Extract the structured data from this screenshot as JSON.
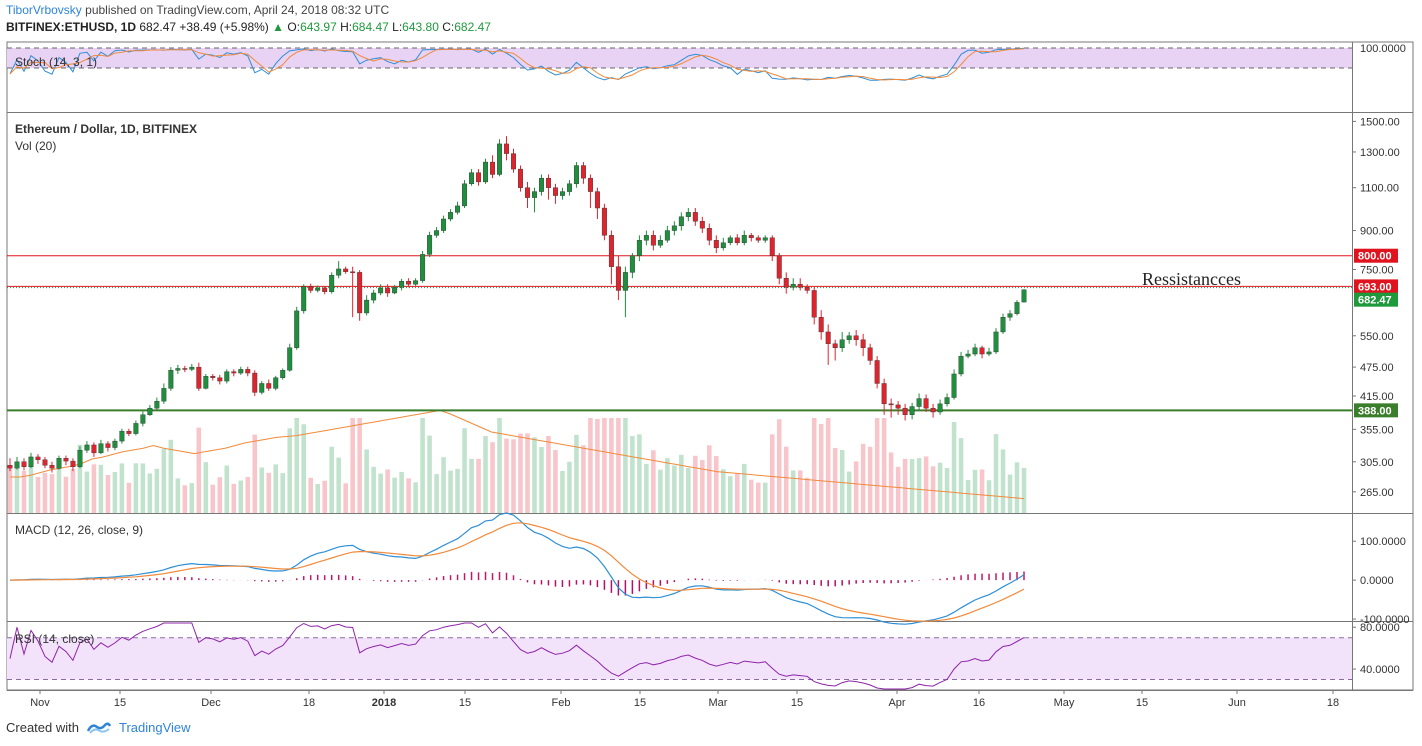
{
  "header": {
    "author": "TiborVrbovsky",
    "published_text": "published on TradingView.com, April 24, 2018 08:32 UTC",
    "symbol": "BITFINEX:ETHUSD, 1D",
    "last": "682.47",
    "change": "+38.49 (+5.98%)",
    "open_label": "O:",
    "open": "643.97",
    "high_label": "H:",
    "high": "684.47",
    "low_label": "L:",
    "low": "643.80",
    "close_label": "C:",
    "close": "682.47"
  },
  "footer": {
    "created_with": "Created with",
    "brand": "TradingView"
  },
  "chart_data": {
    "type": "candlestick",
    "title": "Ethereum / Dollar, 1D, BITFINEX",
    "volume_label": "Vol (20)",
    "annotation": "Ressistancces",
    "price_scale": "log",
    "ylim": [
      240,
      1560
    ],
    "price_ticks": [
      "1500.00",
      "1300.00",
      "1100.00",
      "900.00",
      "750.00",
      "550.00",
      "475.00",
      "415.00",
      "355.00",
      "305.00",
      "265.00"
    ],
    "price_tick_values": [
      1500,
      1300,
      1100,
      900,
      750,
      550,
      475,
      415,
      355,
      305,
      265
    ],
    "levels": [
      {
        "label": "800.00",
        "value": 800,
        "color": "#e0141e"
      },
      {
        "label": "693.00",
        "value": 693,
        "color": "#e0141e"
      },
      {
        "label": "388.00",
        "value": 388,
        "color": "#3a7d2a"
      }
    ],
    "last_price_label": "682.47",
    "last_price_value": 682.47,
    "x_ticks": [
      "Nov",
      "15",
      "Dec",
      "18",
      "2018",
      "15",
      "Feb",
      "15",
      "Mar",
      "15",
      "Apr",
      "16",
      "May",
      "15",
      "Jun",
      "18"
    ],
    "stoch": {
      "label": "Stoch (14, 3, 1)",
      "ticks": [
        "100.0000"
      ],
      "ylim": [
        0,
        100
      ],
      "band": [
        20,
        80
      ]
    },
    "macd": {
      "label": "MACD (12, 26, close, 9)",
      "ticks": [
        "100.0000",
        "0.0000",
        "-100.0000"
      ],
      "ylim": [
        -105,
        170
      ]
    },
    "rsi": {
      "label": "RSI (14, close)",
      "ticks": [
        "80.0000",
        "40.0000"
      ],
      "ylim": [
        20,
        85
      ],
      "band": [
        30,
        70
      ]
    },
    "candles": [
      [
        300,
        296,
        310,
        292
      ],
      [
        296,
        305,
        312,
        294
      ],
      [
        305,
        298,
        310,
        293
      ],
      [
        298,
        312,
        318,
        296
      ],
      [
        312,
        308,
        316,
        302
      ],
      [
        308,
        300,
        312,
        296
      ],
      [
        300,
        296,
        305,
        290
      ],
      [
        296,
        310,
        314,
        294
      ],
      [
        310,
        306,
        314,
        300
      ],
      [
        306,
        298,
        310,
        292
      ],
      [
        298,
        322,
        328,
        296
      ],
      [
        322,
        330,
        336,
        318
      ],
      [
        330,
        318,
        334,
        312
      ],
      [
        318,
        332,
        338,
        316
      ],
      [
        332,
        326,
        336,
        320
      ],
      [
        326,
        336,
        340,
        322
      ],
      [
        336,
        352,
        356,
        332
      ],
      [
        352,
        348,
        356,
        344
      ],
      [
        348,
        365,
        370,
        345
      ],
      [
        365,
        380,
        386,
        360
      ],
      [
        380,
        392,
        398,
        378
      ],
      [
        392,
        405,
        412,
        388
      ],
      [
        405,
        430,
        440,
        400
      ],
      [
        430,
        468,
        475,
        425
      ],
      [
        468,
        472,
        480,
        460
      ],
      [
        472,
        470,
        478,
        464
      ],
      [
        470,
        475,
        482,
        466
      ],
      [
        475,
        430,
        485,
        425
      ],
      [
        430,
        455,
        460,
        428
      ],
      [
        455,
        452,
        460,
        446
      ],
      [
        452,
        445,
        458,
        438
      ],
      [
        445,
        465,
        470,
        440
      ],
      [
        465,
        462,
        470,
        455
      ],
      [
        462,
        470,
        476,
        458
      ],
      [
        470,
        462,
        476,
        455
      ],
      [
        462,
        422,
        468,
        415
      ],
      [
        422,
        440,
        445,
        418
      ],
      [
        440,
        430,
        448,
        425
      ],
      [
        430,
        452,
        456,
        426
      ],
      [
        452,
        468,
        472,
        448
      ],
      [
        468,
        520,
        530,
        465
      ],
      [
        520,
        618,
        630,
        515
      ],
      [
        618,
        692,
        700,
        610
      ],
      [
        692,
        680,
        702,
        672
      ],
      [
        680,
        688,
        696,
        674
      ],
      [
        688,
        676,
        694,
        668
      ],
      [
        676,
        730,
        740,
        670
      ],
      [
        730,
        752,
        780,
        720
      ],
      [
        752,
        742,
        760,
        735
      ],
      [
        742,
        740,
        760,
        600
      ],
      [
        740,
        612,
        748,
        590
      ],
      [
        612,
        650,
        665,
        605
      ],
      [
        650,
        672,
        682,
        640
      ],
      [
        672,
        688,
        700,
        665
      ],
      [
        688,
        672,
        700,
        660
      ],
      [
        672,
        690,
        698,
        668
      ],
      [
        690,
        710,
        718,
        680
      ],
      [
        710,
        700,
        720,
        690
      ],
      [
        700,
        712,
        720,
        695
      ],
      [
        712,
        805,
        818,
        705
      ],
      [
        805,
        880,
        895,
        795
      ],
      [
        880,
        900,
        915,
        870
      ],
      [
        900,
        950,
        965,
        890
      ],
      [
        950,
        980,
        995,
        940
      ],
      [
        980,
        1010,
        1030,
        970
      ],
      [
        1010,
        1120,
        1140,
        1000
      ],
      [
        1120,
        1180,
        1200,
        1110
      ],
      [
        1180,
        1130,
        1200,
        1110
      ],
      [
        1130,
        1240,
        1260,
        1120
      ],
      [
        1240,
        1170,
        1280,
        1150
      ],
      [
        1170,
        1350,
        1380,
        1160
      ],
      [
        1350,
        1290,
        1400,
        1250
      ],
      [
        1290,
        1200,
        1320,
        1180
      ],
      [
        1200,
        1100,
        1220,
        1080
      ],
      [
        1100,
        1050,
        1130,
        1000
      ],
      [
        1050,
        1080,
        1100,
        980
      ],
      [
        1080,
        1150,
        1170,
        1060
      ],
      [
        1150,
        1100,
        1170,
        1040
      ],
      [
        1100,
        1060,
        1120,
        1020
      ],
      [
        1060,
        1080,
        1100,
        1040
      ],
      [
        1080,
        1120,
        1140,
        1060
      ],
      [
        1120,
        1220,
        1240,
        1100
      ],
      [
        1220,
        1150,
        1240,
        1120
      ],
      [
        1150,
        1080,
        1170,
        1000
      ],
      [
        1080,
        1000,
        1100,
        950
      ],
      [
        1000,
        880,
        1020,
        860
      ],
      [
        880,
        760,
        900,
        700
      ],
      [
        760,
        680,
        800,
        650
      ],
      [
        680,
        740,
        760,
        600
      ],
      [
        740,
        800,
        810,
        720
      ],
      [
        800,
        860,
        880,
        780
      ],
      [
        860,
        880,
        900,
        840
      ],
      [
        880,
        840,
        900,
        820
      ],
      [
        840,
        860,
        880,
        830
      ],
      [
        860,
        900,
        920,
        850
      ],
      [
        900,
        920,
        940,
        880
      ],
      [
        920,
        960,
        980,
        900
      ],
      [
        960,
        980,
        1000,
        940
      ],
      [
        980,
        940,
        1000,
        920
      ],
      [
        940,
        910,
        960,
        890
      ],
      [
        910,
        860,
        930,
        840
      ],
      [
        860,
        830,
        880,
        810
      ],
      [
        830,
        850,
        870,
        820
      ],
      [
        850,
        870,
        880,
        840
      ],
      [
        870,
        850,
        885,
        840
      ],
      [
        850,
        880,
        900,
        840
      ],
      [
        880,
        870,
        890,
        855
      ],
      [
        870,
        860,
        880,
        850
      ],
      [
        860,
        870,
        880,
        850
      ],
      [
        870,
        800,
        880,
        780
      ],
      [
        800,
        720,
        810,
        700
      ],
      [
        720,
        690,
        740,
        670
      ],
      [
        690,
        700,
        720,
        680
      ],
      [
        700,
        690,
        720,
        680
      ],
      [
        690,
        680,
        700,
        670
      ],
      [
        680,
        600,
        690,
        580
      ],
      [
        600,
        560,
        620,
        540
      ],
      [
        560,
        530,
        580,
        480
      ],
      [
        530,
        520,
        540,
        490
      ],
      [
        520,
        540,
        560,
        510
      ],
      [
        540,
        550,
        560,
        530
      ],
      [
        550,
        540,
        565,
        525
      ],
      [
        540,
        520,
        555,
        500
      ],
      [
        520,
        490,
        530,
        480
      ],
      [
        490,
        440,
        500,
        430
      ],
      [
        440,
        400,
        450,
        380
      ],
      [
        400,
        398,
        410,
        375
      ],
      [
        398,
        392,
        405,
        380
      ],
      [
        392,
        380,
        400,
        370
      ],
      [
        380,
        395,
        402,
        372
      ],
      [
        395,
        410,
        420,
        388
      ],
      [
        410,
        392,
        418,
        385
      ],
      [
        392,
        385,
        400,
        375
      ],
      [
        385,
        400,
        408,
        380
      ],
      [
        400,
        412,
        420,
        395
      ],
      [
        412,
        460,
        470,
        408
      ],
      [
        460,
        500,
        510,
        455
      ],
      [
        500,
        505,
        515,
        495
      ],
      [
        505,
        520,
        530,
        500
      ],
      [
        520,
        505,
        525,
        495
      ],
      [
        505,
        510,
        520,
        500
      ],
      [
        510,
        560,
        570,
        505
      ],
      [
        560,
        600,
        610,
        555
      ],
      [
        600,
        610,
        620,
        590
      ],
      [
        610,
        643,
        650,
        605
      ],
      [
        644,
        682,
        684,
        643
      ]
    ],
    "volume_avg": [
      290,
      290,
      292,
      295,
      298,
      300,
      302,
      305,
      310,
      312,
      315,
      318,
      320,
      322,
      325,
      322,
      320,
      318,
      316,
      318,
      320,
      322,
      325,
      328,
      330,
      332,
      334,
      335,
      336,
      338,
      340,
      342,
      344,
      346,
      348,
      350,
      352,
      354,
      356,
      358,
      360,
      362,
      364,
      360,
      355,
      350,
      345,
      340,
      338,
      336,
      334,
      332,
      330,
      328,
      326,
      324,
      322,
      320,
      318,
      316,
      314,
      312,
      310,
      308,
      306,
      304,
      302,
      300,
      298,
      296,
      295,
      294,
      293,
      292,
      291,
      290,
      289,
      288,
      287,
      286,
      285,
      284,
      283,
      282,
      281,
      280,
      279,
      278,
      277,
      276,
      275,
      274,
      273,
      272,
      271,
      270,
      269,
      268,
      267,
      266
    ]
  }
}
